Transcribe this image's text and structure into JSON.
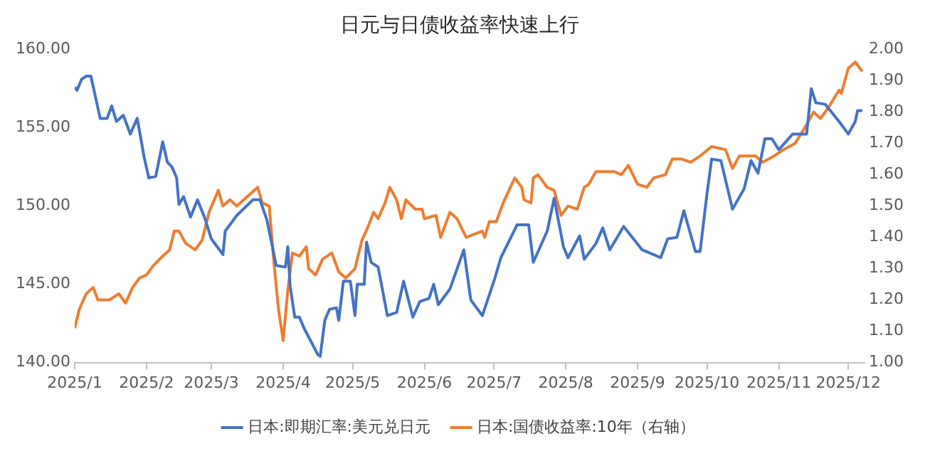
{
  "chart_data": {
    "type": "line",
    "title": "日元与日债收益率快速上行",
    "xlim": [
      "2025-01-01",
      "2025-12-08"
    ],
    "xticks": [
      {
        "value": "2025-01-01",
        "label": "2025/1"
      },
      {
        "value": "2025-02-01",
        "label": "2025/2"
      },
      {
        "value": "2025-03-01",
        "label": "2025/3"
      },
      {
        "value": "2025-04-01",
        "label": "2025/4"
      },
      {
        "value": "2025-05-01",
        "label": "2025/5"
      },
      {
        "value": "2025-06-01",
        "label": "2025/6"
      },
      {
        "value": "2025-07-01",
        "label": "2025/7"
      },
      {
        "value": "2025-08-01",
        "label": "2025/8"
      },
      {
        "value": "2025-09-01",
        "label": "2025/9"
      },
      {
        "value": "2025-10-01",
        "label": "2025/10"
      },
      {
        "value": "2025-11-01",
        "label": "2025/11"
      },
      {
        "value": "2025-12-01",
        "label": "2025/12"
      }
    ],
    "ylim": [
      140,
      160
    ],
    "yticks": [
      {
        "value": 140,
        "label": "140.00"
      },
      {
        "value": 145,
        "label": "145.00"
      },
      {
        "value": 150,
        "label": "150.00"
      },
      {
        "value": 155,
        "label": "155.00"
      },
      {
        "value": 160,
        "label": "160.00"
      }
    ],
    "y2lim": [
      1,
      2
    ],
    "y2ticks": [
      {
        "value": 1,
        "label": "1.00"
      },
      {
        "value": 1.1,
        "label": "1.10"
      },
      {
        "value": 1.2,
        "label": "1.20"
      },
      {
        "value": 1.3,
        "label": "1.30"
      },
      {
        "value": 1.4,
        "label": "1.40"
      },
      {
        "value": 1.5,
        "label": "1.50"
      },
      {
        "value": 1.6,
        "label": "1.60"
      },
      {
        "value": 1.7,
        "label": "1.70"
      },
      {
        "value": 1.8,
        "label": "1.80"
      },
      {
        "value": 1.9,
        "label": "1.90"
      },
      {
        "value": 2,
        "label": "2.00"
      }
    ],
    "grid": false,
    "legend": "bottom",
    "marker": "none",
    "line_style": "solid",
    "series": [
      {
        "name": "日本:即期汇率:美元兑日元",
        "color": "#4472c4",
        "x": [
          "2025-01-01",
          "2025-01-02",
          "2025-01-04",
          "2025-01-06",
          "2025-01-08",
          "2025-01-12",
          "2025-01-15",
          "2025-01-17",
          "2025-01-19",
          "2025-01-22",
          "2025-01-25",
          "2025-01-28",
          "2025-01-31",
          "2025-02-02",
          "2025-02-05",
          "2025-02-08",
          "2025-02-10",
          "2025-02-12",
          "2025-02-14",
          "2025-02-15",
          "2025-02-17",
          "2025-02-20",
          "2025-02-23",
          "2025-02-26",
          "2025-03-01",
          "2025-03-06",
          "2025-03-07",
          "2025-03-10",
          "2025-03-12",
          "2025-03-19",
          "2025-03-22",
          "2025-03-25",
          "2025-03-29",
          "2025-04-02",
          "2025-04-03",
          "2025-04-04",
          "2025-04-06",
          "2025-04-08",
          "2025-04-10",
          "2025-04-16",
          "2025-04-17",
          "2025-04-19",
          "2025-04-21",
          "2025-04-24",
          "2025-04-25",
          "2025-04-27",
          "2025-04-30",
          "2025-05-02",
          "2025-05-03",
          "2025-05-06",
          "2025-05-07",
          "2025-05-09",
          "2025-05-12",
          "2025-05-16",
          "2025-05-20",
          "2025-05-23",
          "2025-05-27",
          "2025-05-30",
          "2025-06-03",
          "2025-06-05",
          "2025-06-07",
          "2025-06-12",
          "2025-06-18",
          "2025-06-21",
          "2025-06-26",
          "2025-07-01",
          "2025-07-04",
          "2025-07-07",
          "2025-07-11",
          "2025-07-16",
          "2025-07-18",
          "2025-07-24",
          "2025-07-27",
          "2025-07-31",
          "2025-08-02",
          "2025-08-07",
          "2025-08-09",
          "2025-08-14",
          "2025-08-17",
          "2025-08-20",
          "2025-08-26",
          "2025-09-03",
          "2025-09-11",
          "2025-09-14",
          "2025-09-18",
          "2025-09-21",
          "2025-09-26",
          "2025-09-28",
          "2025-10-01",
          "2025-10-03",
          "2025-10-07",
          "2025-10-12",
          "2025-10-17",
          "2025-10-20",
          "2025-10-23",
          "2025-10-26",
          "2025-10-29",
          "2025-11-01",
          "2025-11-07",
          "2025-11-13",
          "2025-11-15",
          "2025-11-17",
          "2025-11-21",
          "2025-11-27",
          "2025-12-01",
          "2025-12-04",
          "2025-12-05",
          "2025-12-07"
        ],
        "values": [
          157.6,
          157.4,
          158.1,
          158.3,
          158.3,
          155.6,
          155.6,
          156.4,
          155.4,
          155.8,
          154.6,
          155.6,
          153.1,
          151.8,
          151.9,
          154.1,
          152.8,
          152.5,
          151.8,
          150.1,
          150.6,
          149.3,
          150.4,
          149.3,
          147.9,
          146.9,
          148.4,
          149.0,
          149.4,
          150.4,
          150.4,
          149.1,
          146.2,
          146.1,
          147.4,
          144.9,
          142.9,
          142.9,
          142.2,
          140.5,
          140.4,
          142.7,
          143.4,
          143.5,
          142.7,
          145.2,
          145.2,
          143.0,
          145.0,
          145.0,
          147.7,
          146.4,
          146.1,
          143.0,
          143.2,
          145.2,
          142.9,
          143.9,
          144.1,
          145.0,
          143.7,
          144.7,
          147.2,
          144.0,
          143.0,
          145.2,
          146.7,
          147.6,
          148.8,
          148.8,
          146.4,
          148.4,
          150.5,
          147.4,
          146.7,
          148.1,
          146.6,
          147.6,
          148.6,
          147.2,
          148.7,
          147.2,
          146.7,
          147.9,
          148.0,
          149.7,
          147.1,
          147.1,
          150.8,
          153.0,
          152.9,
          149.8,
          151.1,
          152.9,
          152.1,
          154.3,
          154.3,
          153.6,
          154.6,
          154.6,
          157.5,
          156.6,
          156.5,
          155.4,
          154.6,
          155.4,
          156.1,
          156.1
        ]
      },
      {
        "name": "日本:国债收益率:10年（右轴）",
        "color": "#ed7d31",
        "axis": "y2",
        "x": [
          "2025-01-01",
          "2025-01-03",
          "2025-01-06",
          "2025-01-09",
          "2025-01-11",
          "2025-01-16",
          "2025-01-20",
          "2025-01-23",
          "2025-01-26",
          "2025-01-29",
          "2025-02-01",
          "2025-02-04",
          "2025-02-08",
          "2025-02-11",
          "2025-02-13",
          "2025-02-15",
          "2025-02-18",
          "2025-02-22",
          "2025-02-25",
          "2025-02-28",
          "2025-03-04",
          "2025-03-06",
          "2025-03-09",
          "2025-03-12",
          "2025-03-15",
          "2025-03-21",
          "2025-03-23",
          "2025-03-26",
          "2025-03-28",
          "2025-03-30",
          "2025-04-01",
          "2025-04-03",
          "2025-04-05",
          "2025-04-08",
          "2025-04-11",
          "2025-04-12",
          "2025-04-15",
          "2025-04-18",
          "2025-04-22",
          "2025-04-25",
          "2025-04-28",
          "2025-05-02",
          "2025-05-05",
          "2025-05-08",
          "2025-05-10",
          "2025-05-12",
          "2025-05-15",
          "2025-05-17",
          "2025-05-20",
          "2025-05-22",
          "2025-05-24",
          "2025-05-28",
          "2025-05-31",
          "2025-06-01",
          "2025-06-06",
          "2025-06-08",
          "2025-06-12",
          "2025-06-15",
          "2025-06-19",
          "2025-06-26",
          "2025-06-27",
          "2025-06-29",
          "2025-07-02",
          "2025-07-05",
          "2025-07-10",
          "2025-07-13",
          "2025-07-14",
          "2025-07-17",
          "2025-07-18",
          "2025-07-20",
          "2025-07-24",
          "2025-07-27",
          "2025-07-30",
          "2025-08-02",
          "2025-08-06",
          "2025-08-09",
          "2025-08-11",
          "2025-08-14",
          "2025-08-18",
          "2025-08-22",
          "2025-08-25",
          "2025-08-28",
          "2025-09-01",
          "2025-09-05",
          "2025-09-08",
          "2025-09-13",
          "2025-09-16",
          "2025-09-20",
          "2025-09-24",
          "2025-09-28",
          "2025-10-03",
          "2025-10-09",
          "2025-10-12",
          "2025-10-15",
          "2025-10-22",
          "2025-10-25",
          "2025-10-30",
          "2025-11-03",
          "2025-11-08",
          "2025-11-13",
          "2025-11-16",
          "2025-11-19",
          "2025-11-22",
          "2025-11-27",
          "2025-11-28",
          "2025-12-01",
          "2025-12-04",
          "2025-12-07"
        ],
        "values": [
          1.11,
          1.17,
          1.22,
          1.24,
          1.2,
          1.2,
          1.22,
          1.19,
          1.24,
          1.27,
          1.28,
          1.31,
          1.34,
          1.36,
          1.42,
          1.42,
          1.38,
          1.36,
          1.39,
          1.48,
          1.55,
          1.5,
          1.52,
          1.5,
          1.52,
          1.56,
          1.51,
          1.5,
          1.32,
          1.17,
          1.07,
          1.23,
          1.35,
          1.34,
          1.37,
          1.3,
          1.28,
          1.33,
          1.35,
          1.29,
          1.27,
          1.3,
          1.39,
          1.44,
          1.48,
          1.46,
          1.51,
          1.56,
          1.52,
          1.46,
          1.52,
          1.49,
          1.49,
          1.46,
          1.47,
          1.4,
          1.48,
          1.46,
          1.4,
          1.42,
          1.4,
          1.45,
          1.45,
          1.51,
          1.59,
          1.56,
          1.52,
          1.51,
          1.59,
          1.6,
          1.56,
          1.55,
          1.47,
          1.5,
          1.49,
          1.56,
          1.57,
          1.61,
          1.61,
          1.61,
          1.6,
          1.63,
          1.57,
          1.56,
          1.59,
          1.6,
          1.65,
          1.65,
          1.64,
          1.66,
          1.69,
          1.68,
          1.62,
          1.66,
          1.66,
          1.64,
          1.66,
          1.68,
          1.7,
          1.76,
          1.8,
          1.78,
          1.81,
          1.87,
          1.86,
          1.94,
          1.96,
          1.93
        ]
      }
    ]
  }
}
